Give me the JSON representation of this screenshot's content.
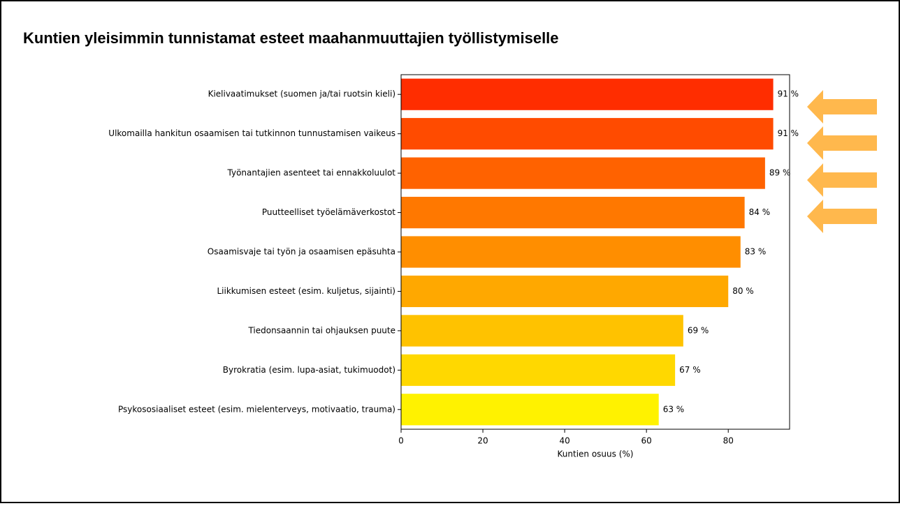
{
  "chart_data": {
    "type": "barh",
    "title": "Kuntien yleisimmin tunnistamat esteet maahanmuuttajien työllistymiselle",
    "xlabel": "Kuntien osuus (%)",
    "categories": [
      "Kielivaatimukset (suomen ja/tai ruotsin kieli)",
      "Ulkomailla hankitun osaamisen tai tutkinnon tunnustamisen vaikeus",
      "Työnantajien asenteet tai ennakkoluulot",
      "Puutteelliset työelämäverkostot",
      "Osaamisvaje tai työn ja osaamisen epäsuhta",
      "Liikkumisen esteet (esim. kuljetus, sijainti)",
      "Tiedonsaannin tai ohjauksen puute",
      "Byrokratia (esim. lupa-asiat, tukimuodot)",
      "Psykososiaaliset esteet (esim. mielenterveys, motivaatio, trauma)"
    ],
    "values": [
      91,
      91,
      89,
      84,
      83,
      80,
      69,
      67,
      63
    ],
    "value_labels": [
      "91 %",
      "91 %",
      "89 %",
      "84 %",
      "83 %",
      "80 %",
      "69 %",
      "67 %",
      "63 %"
    ],
    "colors": [
      "#ff2d00",
      "#ff4b00",
      "#ff6200",
      "#ff7800",
      "#ff8e00",
      "#ffa800",
      "#ffc200",
      "#ffd800",
      "#fff200"
    ],
    "xlim": [
      0,
      95
    ],
    "xticks": [
      0,
      20,
      40,
      60,
      80
    ]
  }
}
